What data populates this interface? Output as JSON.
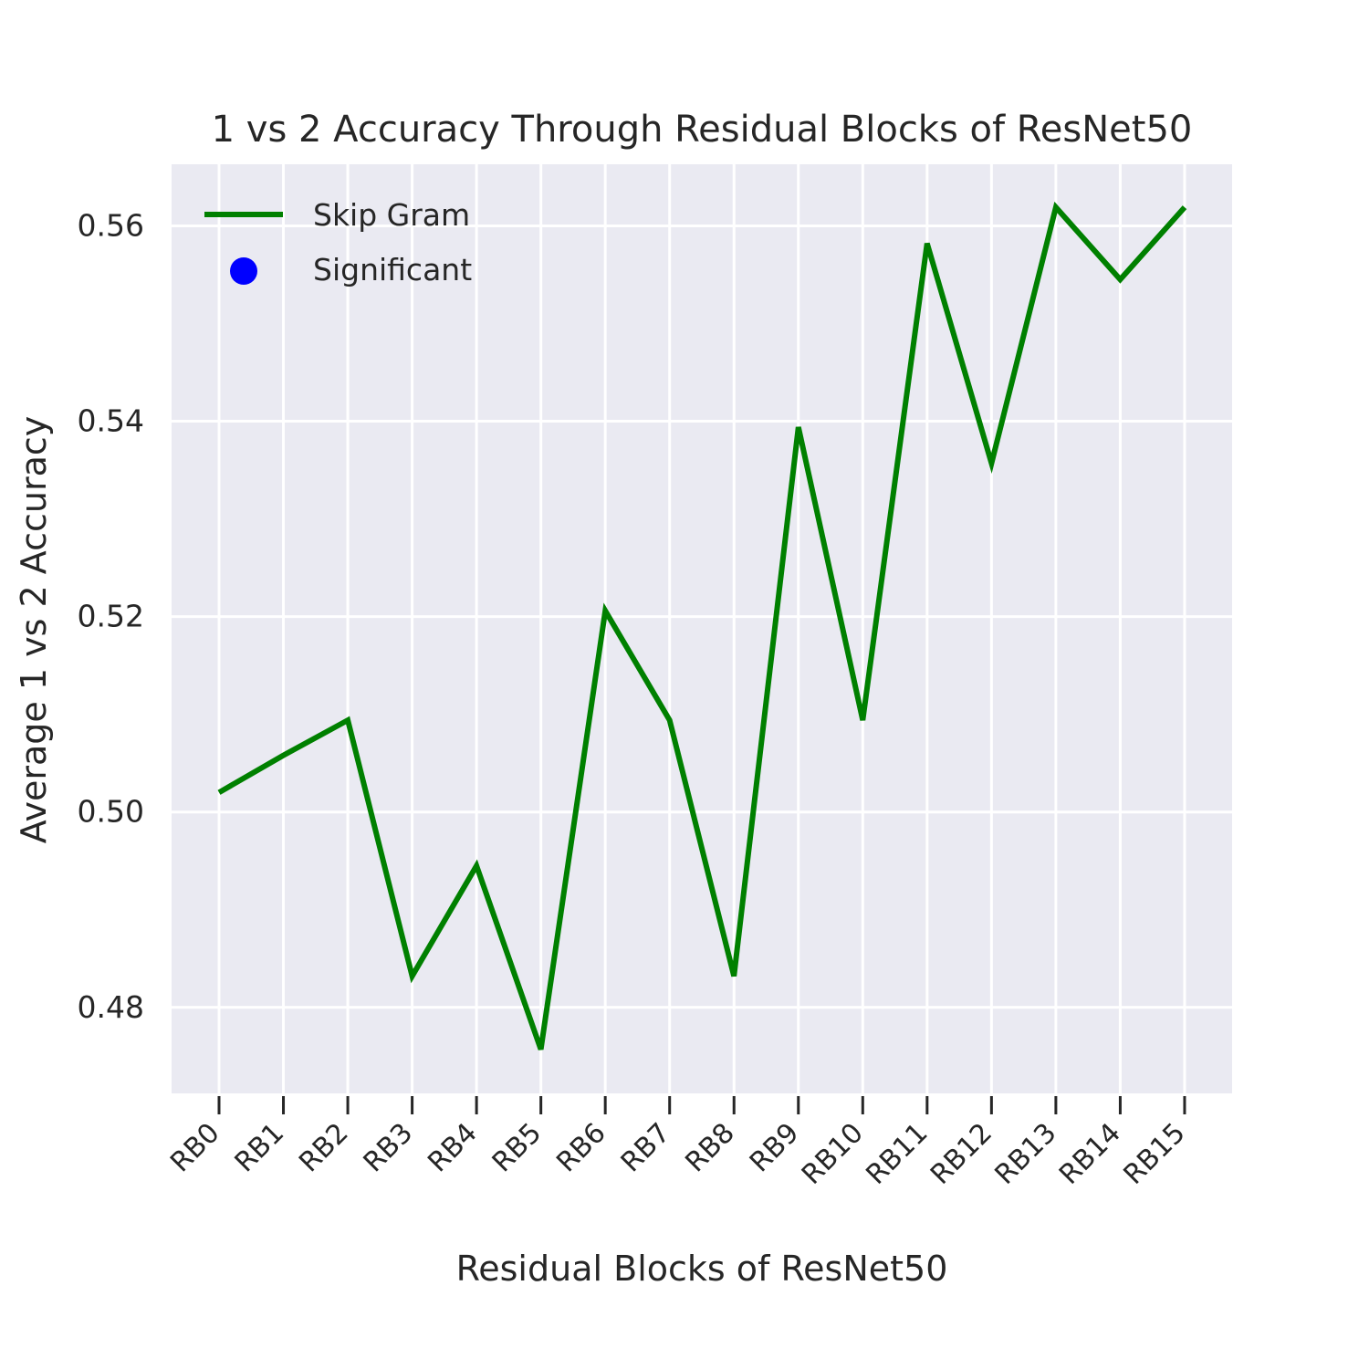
{
  "chart_data": {
    "type": "line",
    "title": "1 vs 2 Accuracy Through Residual Blocks of ResNet50",
    "xlabel": "Residual Blocks of ResNet50",
    "ylabel": "Average 1 vs 2 Accuracy",
    "categories": [
      "RB0",
      "RB1",
      "RB2",
      "RB3",
      "RB4",
      "RB5",
      "RB6",
      "RB7",
      "RB8",
      "RB9",
      "RB10",
      "RB11",
      "RB12",
      "RB13",
      "RB14",
      "RB15"
    ],
    "series": [
      {
        "name": "Skip Gram",
        "color": "#008000",
        "values": [
          0.502,
          0.5058,
          0.5094,
          0.4832,
          0.4945,
          0.4757,
          0.5206,
          0.5094,
          0.4832,
          0.5394,
          0.5094,
          0.5582,
          0.5357,
          0.5619,
          0.5545,
          0.5619
        ]
      }
    ],
    "legend": [
      {
        "label": "Skip Gram",
        "kind": "line",
        "color": "#008000"
      },
      {
        "label": "Significant",
        "kind": "marker",
        "color": "#0000ff"
      }
    ],
    "legend_position": "top-left",
    "ylim": [
      0.4712,
      0.5663
    ],
    "yticks": [
      0.48,
      0.5,
      0.52,
      0.54,
      0.56
    ],
    "ytick_labels": [
      "0.48",
      "0.50",
      "0.52",
      "0.54",
      "0.56"
    ],
    "grid": true,
    "style": "seaborn-darkgrid",
    "plot_background": "#eaeaf2"
  }
}
